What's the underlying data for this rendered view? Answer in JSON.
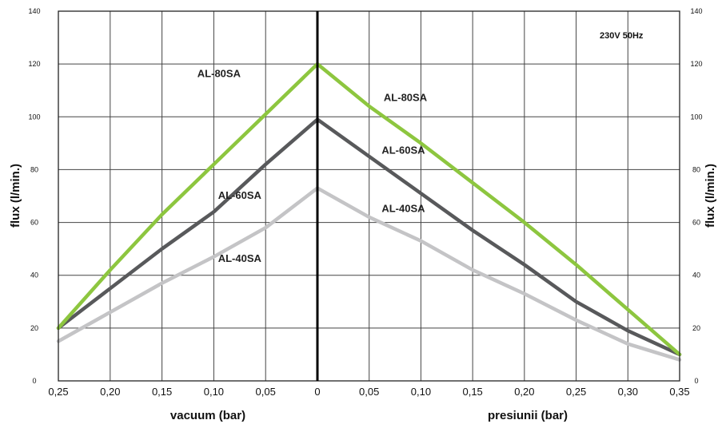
{
  "chart_data": {
    "type": "line",
    "note": "230V 50Hz",
    "xlabel_left": "vacuum (bar)",
    "xlabel_right": "presiunii (bar)",
    "ylabel_left": "flux (l/min.)",
    "ylabel_right": "flux (l/min.)",
    "ylim": [
      0,
      140
    ],
    "grid": true,
    "yticks": [
      0,
      20,
      40,
      60,
      80,
      100,
      120,
      140
    ],
    "vacuum_ticks": [
      "0,25",
      "0,20",
      "0,15",
      "0,10",
      "0,05",
      "0"
    ],
    "pressure_ticks": [
      "0,05",
      "0,10",
      "0,15",
      "0,20",
      "0,25",
      "0,30",
      "0,35"
    ],
    "series": [
      {
        "name": "AL-80SA",
        "color": "#8dc63f",
        "vacuum": {
          "x": [
            0.25,
            0.2,
            0.15,
            0.1,
            0.05,
            0
          ],
          "y": [
            20,
            42,
            63,
            82,
            101,
            120
          ]
        },
        "pressure": {
          "x": [
            0,
            0.05,
            0.1,
            0.15,
            0.2,
            0.25,
            0.3,
            0.35
          ],
          "y": [
            120,
            104,
            90,
            75,
            60,
            44,
            27,
            10
          ]
        }
      },
      {
        "name": "AL-60SA",
        "color": "#58595b",
        "vacuum": {
          "x": [
            0.25,
            0.2,
            0.15,
            0.1,
            0.05,
            0
          ],
          "y": [
            20,
            35,
            50,
            64,
            82,
            99
          ]
        },
        "pressure": {
          "x": [
            0,
            0.05,
            0.1,
            0.15,
            0.2,
            0.25,
            0.3,
            0.35
          ],
          "y": [
            99,
            85,
            71,
            57,
            44,
            30,
            19,
            10
          ]
        }
      },
      {
        "name": "AL-40SA",
        "color": "#c4c4c6",
        "vacuum": {
          "x": [
            0.25,
            0.2,
            0.15,
            0.1,
            0.05,
            0
          ],
          "y": [
            15,
            26,
            37,
            47,
            58,
            73
          ]
        },
        "pressure": {
          "x": [
            0,
            0.05,
            0.1,
            0.15,
            0.2,
            0.25,
            0.3,
            0.35
          ],
          "y": [
            73,
            62,
            53,
            42,
            33,
            23,
            14,
            8
          ]
        }
      }
    ],
    "labels": [
      {
        "text": "AL-80SA",
        "side": "vacuum",
        "x": 0.095,
        "y": 115
      },
      {
        "text": "AL-80SA",
        "side": "pressure",
        "x": 0.085,
        "y": 106
      },
      {
        "text": "AL-60SA",
        "side": "vacuum",
        "x": 0.075,
        "y": 69
      },
      {
        "text": "AL-60SA",
        "side": "pressure",
        "x": 0.083,
        "y": 86
      },
      {
        "text": "AL-40SA",
        "side": "vacuum",
        "x": 0.075,
        "y": 45
      },
      {
        "text": "AL-40SA",
        "side": "pressure",
        "x": 0.083,
        "y": 64
      }
    ]
  }
}
